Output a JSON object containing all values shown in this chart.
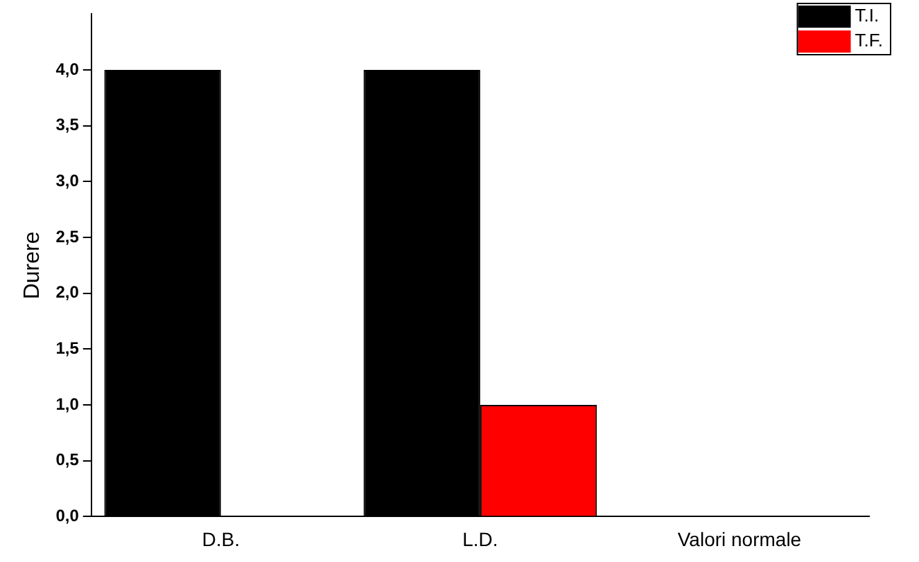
{
  "chart_data": {
    "type": "bar",
    "ylabel": "Durere",
    "categories": [
      "D.B.",
      "L.D.",
      "Valori normale"
    ],
    "series": [
      {
        "name": "T.I.",
        "color": "#000000",
        "values": [
          4,
          4,
          0
        ]
      },
      {
        "name": "T.F.",
        "color": "#ff0000",
        "values": [
          0,
          1,
          0
        ]
      }
    ],
    "ylim": [
      0,
      4.5
    ],
    "yticks": [
      {
        "value": 0,
        "label": "0,0"
      },
      {
        "value": 0.5,
        "label": "0,5"
      },
      {
        "value": 1,
        "label": "1,0"
      },
      {
        "value": 1.5,
        "label": "1,5"
      },
      {
        "value": 2,
        "label": "2,0"
      },
      {
        "value": 2.5,
        "label": "2,5"
      },
      {
        "value": 3,
        "label": "3,0"
      },
      {
        "value": 3.5,
        "label": "3,5"
      },
      {
        "value": 4,
        "label": "4,0"
      }
    ],
    "grid": false,
    "legend": "top right"
  }
}
